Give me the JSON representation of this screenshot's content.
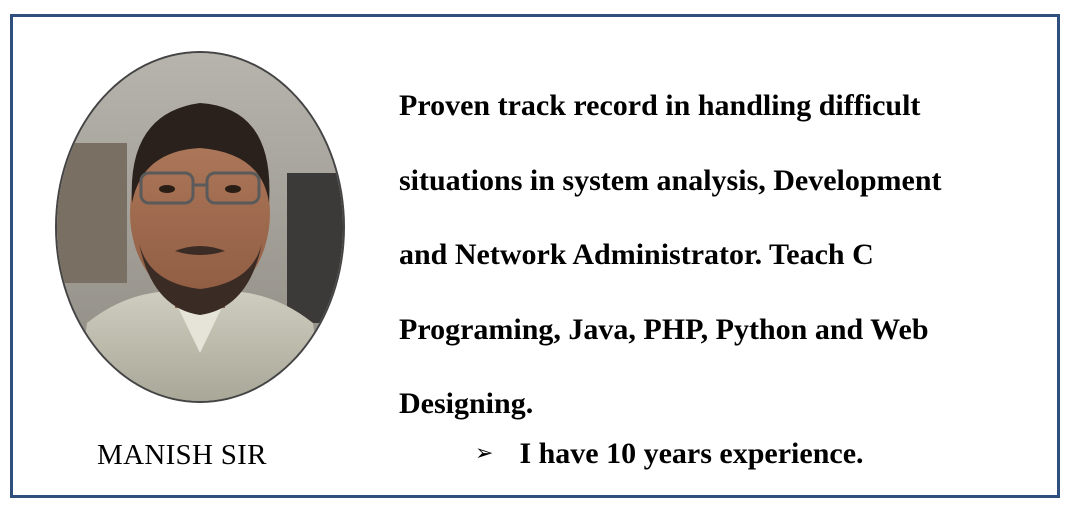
{
  "profile": {
    "name": "MANISH SIR",
    "photo_alt": "portrait-photo"
  },
  "description": {
    "lines": [
      "Proven track record in handling difficult",
      "situations in system analysis, Development",
      "and Network Administrator. Teach C",
      "Programing, Java, PHP, Python and Web",
      "Designing."
    ]
  },
  "bullet": {
    "icon": "arrowhead-bullet-icon",
    "symbol": "➢",
    "text": "I have 10 years experience."
  },
  "colors": {
    "border": "#2f4f7c",
    "text": "#000000",
    "background": "#ffffff"
  }
}
